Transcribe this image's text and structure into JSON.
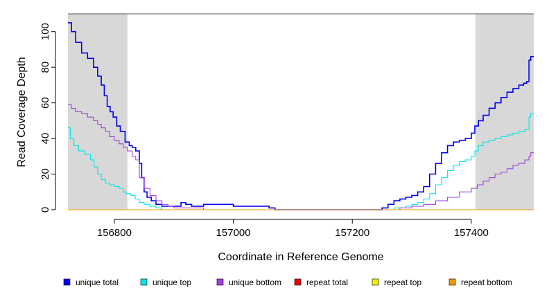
{
  "chart_data": {
    "type": "line",
    "step": true,
    "xlabel": "Coordinate in Reference Genome",
    "ylabel": "Read Coverage Depth",
    "xlim": [
      156722,
      157505
    ],
    "ylim": [
      0,
      110
    ],
    "xticks": [
      156800,
      157000,
      157200,
      157400
    ],
    "xtick_labels": [
      "156800",
      "157000",
      "157200",
      "157400"
    ],
    "yticks": [
      0,
      20,
      40,
      60,
      80,
      100
    ],
    "ytick_labels": [
      "0",
      "20",
      "40",
      "60",
      "80",
      "100"
    ],
    "shaded_regions": [
      {
        "x0": 156722,
        "x1": 156822,
        "color": "#d8d8d8"
      },
      {
        "x0": 157407,
        "x1": 157505,
        "color": "#d8d8d8"
      }
    ],
    "legend_position": "bottom",
    "series": [
      {
        "name": "unique total",
        "color": "#0000ee",
        "x": [
          156722,
          156728,
          156735,
          156745,
          156755,
          156765,
          156772,
          156778,
          156783,
          156788,
          156793,
          156798,
          156804,
          156810,
          156818,
          156825,
          156830,
          156836,
          156842,
          156846,
          156850,
          156855,
          156862,
          156870,
          156880,
          156890,
          156900,
          156912,
          156920,
          156930,
          156950,
          157000,
          157020,
          157035,
          157050,
          157060,
          157070,
          157080,
          157100,
          157150,
          157200,
          157230,
          157240,
          157250,
          157260,
          157270,
          157280,
          157290,
          157300,
          157310,
          157320,
          157330,
          157340,
          157350,
          157360,
          157370,
          157380,
          157390,
          157400,
          157406,
          157412,
          157420,
          157430,
          157440,
          157450,
          157460,
          157470,
          157480,
          157488,
          157493,
          157497,
          157500,
          157505
        ],
        "y": [
          105,
          100,
          94,
          88,
          85,
          80,
          75,
          70,
          64,
          58,
          55,
          52,
          47,
          44,
          38,
          36,
          35,
          33,
          26,
          18,
          10,
          7,
          5,
          3,
          2,
          2,
          2,
          4,
          3,
          2,
          3,
          2,
          2,
          2,
          2,
          1,
          0,
          0,
          0,
          0,
          0,
          0,
          0,
          1,
          3,
          5,
          6,
          7,
          8,
          10,
          13,
          20,
          26,
          32,
          36,
          38,
          39,
          40,
          43,
          47,
          50,
          53,
          57,
          60,
          63,
          66,
          68,
          70,
          71,
          72,
          84,
          86,
          86
        ]
      },
      {
        "name": "unique top",
        "color": "#00e5e5",
        "x": [
          156722,
          156726,
          156732,
          156740,
          156750,
          156760,
          156766,
          156772,
          156778,
          156785,
          156792,
          156800,
          156808,
          156815,
          156820,
          156828,
          156835,
          156842,
          156850,
          156860,
          156870,
          156880,
          156890,
          156910,
          156950,
          157000,
          157050,
          157100,
          157200,
          157250,
          157270,
          157290,
          157300,
          157310,
          157320,
          157330,
          157340,
          157350,
          157360,
          157370,
          157380,
          157390,
          157400,
          157406,
          157412,
          157420,
          157430,
          157440,
          157450,
          157460,
          157470,
          157480,
          157490,
          157497,
          157500,
          157505
        ],
        "y": [
          46,
          40,
          36,
          33,
          31,
          28,
          24,
          20,
          17,
          15,
          14,
          13,
          12,
          10,
          9,
          8,
          6,
          4,
          3,
          2,
          1,
          0,
          0,
          0,
          0,
          0,
          0,
          0,
          0,
          0,
          1,
          2,
          3,
          4,
          6,
          9,
          14,
          18,
          22,
          25,
          27,
          28,
          30,
          33,
          36,
          38,
          39,
          40,
          41,
          42,
          43,
          44,
          45,
          52,
          54,
          54
        ]
      },
      {
        "name": "unique bottom",
        "color": "#a040e0",
        "x": [
          156722,
          156728,
          156735,
          156745,
          156755,
          156765,
          156772,
          156778,
          156785,
          156792,
          156800,
          156808,
          156815,
          156822,
          156830,
          156836,
          156842,
          156850,
          156860,
          156870,
          156880,
          156890,
          156900,
          156950,
          157000,
          157050,
          157100,
          157200,
          157250,
          157280,
          157300,
          157320,
          157340,
          157360,
          157380,
          157400,
          157410,
          157420,
          157430,
          157440,
          157450,
          157460,
          157470,
          157480,
          157490,
          157497,
          157500,
          157505
        ],
        "y": [
          59,
          57,
          55,
          54,
          52,
          50,
          48,
          46,
          44,
          41,
          39,
          37,
          35,
          33,
          30,
          28,
          18,
          12,
          8,
          5,
          3,
          2,
          1,
          0,
          0,
          0,
          0,
          0,
          0,
          1,
          2,
          3,
          5,
          7,
          10,
          12,
          14,
          16,
          18,
          20,
          21,
          23,
          25,
          26,
          28,
          30,
          32,
          32
        ]
      },
      {
        "name": "repeat total",
        "color": "#ee0000",
        "x": [
          156722,
          157505
        ],
        "y": [
          0,
          0
        ]
      },
      {
        "name": "repeat top",
        "color": "#eeee00",
        "x": [
          156722,
          157505
        ],
        "y": [
          0,
          0
        ]
      },
      {
        "name": "repeat bottom",
        "color": "#ee9a00",
        "x": [
          156722,
          157505
        ],
        "y": [
          0,
          0
        ]
      }
    ]
  }
}
